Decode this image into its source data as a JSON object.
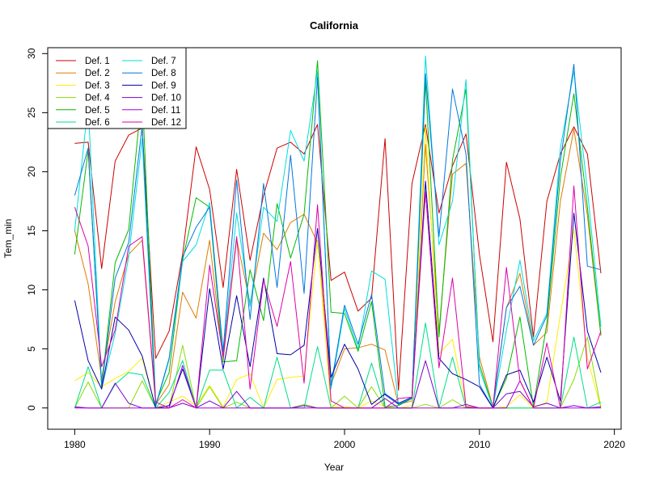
{
  "chart_data": {
    "type": "line",
    "title": "California",
    "xlabel": "Year",
    "ylabel": "Tem_min",
    "xlim": [
      1978,
      2020.5
    ],
    "ylim": [
      -1.8,
      30.5
    ],
    "x_ticks": [
      1980,
      1990,
      2000,
      2010,
      2020
    ],
    "y_ticks": [
      0,
      5,
      10,
      15,
      20,
      25,
      30
    ],
    "legend_position": "top-left",
    "grid": false,
    "x": [
      1980,
      1981,
      1982,
      1983,
      1984,
      1985,
      1986,
      1987,
      1988,
      1989,
      1990,
      1991,
      1992,
      1993,
      1994,
      1995,
      1996,
      1997,
      1998,
      1999,
      2000,
      2001,
      2002,
      2003,
      2004,
      2005,
      2006,
      2007,
      2008,
      2009,
      2010,
      2011,
      2012,
      2013,
      2014,
      2015,
      2016,
      2017,
      2018,
      2019
    ],
    "series": [
      {
        "name": "Def. 1",
        "color": "#cc0000",
        "values": [
          22.4,
          22.5,
          11.8,
          20.9,
          23.1,
          23.7,
          4.2,
          6.5,
          13.0,
          22.1,
          18.5,
          10.2,
          20.2,
          12.5,
          18.0,
          22.0,
          22.5,
          21.5,
          24.0,
          10.8,
          11.5,
          8.2,
          9.3,
          22.8,
          1.5,
          19.0,
          24.0,
          16.5,
          20.5,
          23.2,
          13.0,
          5.6,
          20.8,
          16.0,
          6.0,
          17.5,
          21.5,
          23.8,
          21.5,
          11.4
        ]
      },
      {
        "name": "Def. 2",
        "color": "#e07b00",
        "values": [
          15.0,
          10.5,
          2.5,
          9.0,
          13.0,
          14.2,
          0.3,
          2.0,
          9.8,
          7.6,
          14.2,
          4.0,
          14.3,
          8.9,
          14.8,
          13.4,
          15.7,
          16.4,
          14.0,
          2.0,
          5.0,
          5.1,
          5.4,
          4.9,
          0.3,
          0.6,
          22.3,
          6.5,
          19.8,
          20.7,
          4.3,
          0.1,
          8.5,
          11.4,
          5.3,
          6.4,
          17.5,
          23.6,
          16.3,
          6.1
        ]
      },
      {
        "name": "Def. 3",
        "color": "#ffee00",
        "values": [
          2.3,
          3.0,
          1.8,
          2.5,
          3.1,
          4.2,
          0.0,
          0.5,
          1.0,
          0.2,
          1.9,
          0.1,
          2.4,
          2.9,
          0.0,
          2.4,
          2.6,
          2.7,
          14.2,
          0.1,
          0.1,
          0.0,
          0.6,
          0.1,
          0.0,
          0.2,
          23.8,
          4.6,
          5.8,
          0.2,
          0.0,
          0.0,
          0.1,
          1.1,
          0.0,
          0.5,
          7.9,
          15.1,
          4.2,
          0.0
        ]
      },
      {
        "name": "Def. 4",
        "color": "#88dd00",
        "values": [
          0.0,
          2.2,
          0.0,
          0.0,
          0.0,
          2.3,
          0.0,
          0.0,
          5.3,
          0.0,
          1.8,
          0.0,
          0.5,
          0.0,
          0.0,
          0.0,
          0.0,
          0.3,
          0.0,
          0.0,
          1.0,
          0.0,
          1.8,
          0.0,
          0.0,
          0.0,
          0.3,
          0.0,
          0.7,
          0.0,
          0.0,
          0.0,
          0.0,
          0.0,
          0.0,
          0.0,
          0.0,
          2.4,
          6.0,
          0.0
        ]
      },
      {
        "name": "Def. 5",
        "color": "#00bb00",
        "values": [
          13.0,
          21.8,
          1.9,
          12.3,
          15.1,
          26.9,
          0.4,
          3.0,
          12.5,
          17.8,
          17.0,
          3.9,
          4.0,
          11.7,
          7.4,
          17.3,
          12.7,
          16.4,
          29.4,
          8.1,
          8.0,
          4.8,
          9.0,
          0.1,
          0.2,
          0.8,
          27.7,
          6.0,
          21.0,
          27.0,
          3.7,
          0.0,
          2.5,
          7.7,
          0.1,
          7.2,
          19.5,
          26.6,
          17.0,
          6.2
        ]
      },
      {
        "name": "Def. 6",
        "color": "#00dd88",
        "values": [
          0.0,
          3.5,
          0.0,
          2.0,
          3.0,
          2.8,
          0.0,
          1.3,
          4.0,
          0.0,
          3.2,
          3.2,
          0.0,
          0.9,
          0.0,
          4.3,
          0.0,
          0.0,
          5.2,
          0.0,
          0.0,
          0.0,
          3.8,
          0.0,
          0.0,
          0.0,
          7.2,
          0.0,
          4.3,
          0.0,
          0.0,
          0.0,
          0.0,
          0.0,
          0.0,
          0.0,
          0.0,
          6.0,
          0.0,
          0.5
        ]
      },
      {
        "name": "Def. 7",
        "color": "#00dddd",
        "values": [
          15.0,
          25.8,
          1.7,
          6.3,
          12.8,
          22.8,
          0.1,
          4.1,
          12.4,
          13.8,
          17.4,
          4.4,
          16.5,
          8.6,
          17.0,
          15.8,
          23.5,
          20.9,
          28.5,
          1.6,
          8.4,
          5.0,
          11.6,
          10.9,
          0.3,
          0.8,
          29.8,
          13.8,
          17.5,
          27.8,
          3.3,
          0.0,
          6.6,
          12.5,
          5.7,
          8.0,
          22.0,
          28.5,
          18.5,
          6.9
        ]
      },
      {
        "name": "Def. 8",
        "color": "#0077dd",
        "values": [
          18.0,
          22.0,
          1.8,
          11.0,
          14.0,
          23.9,
          0.2,
          4.2,
          12.8,
          15.3,
          17.0,
          4.8,
          19.3,
          7.5,
          19.0,
          10.2,
          21.4,
          9.7,
          28.0,
          1.9,
          8.7,
          5.4,
          9.6,
          1.1,
          0.3,
          0.8,
          28.3,
          14.5,
          27.0,
          21.5,
          2.0,
          0.0,
          8.5,
          10.3,
          5.3,
          7.8,
          20.9,
          29.1,
          12.0,
          11.7
        ]
      },
      {
        "name": "Def. 9",
        "color": "#0000aa",
        "values": [
          9.1,
          4.0,
          1.6,
          7.7,
          6.6,
          4.4,
          0.0,
          0.2,
          3.3,
          0.0,
          10.1,
          3.3,
          9.5,
          3.5,
          11.0,
          4.6,
          4.5,
          5.3,
          15.2,
          2.6,
          5.4,
          3.3,
          0.3,
          1.2,
          0.4,
          0.9,
          19.2,
          4.2,
          2.9,
          2.4,
          1.8,
          0.0,
          2.8,
          3.2,
          0.5,
          4.3,
          0.6,
          16.5,
          6.5,
          3.0
        ]
      },
      {
        "name": "Def. 10",
        "color": "#7700cc",
        "values": [
          0.1,
          0.0,
          0.0,
          2.1,
          0.4,
          0.0,
          0.0,
          0.0,
          0.4,
          0.0,
          0.6,
          0.0,
          1.4,
          0.0,
          0.0,
          0.0,
          0.0,
          0.2,
          0.0,
          0.0,
          0.0,
          0.0,
          0.0,
          0.8,
          0.0,
          0.0,
          4.0,
          0.0,
          0.0,
          0.3,
          0.0,
          0.0,
          1.2,
          1.4,
          0.1,
          0.4,
          0.0,
          0.2,
          0.0,
          0.1
        ]
      },
      {
        "name": "Def. 11",
        "color": "#aa00dd",
        "values": [
          0.0,
          0.0,
          0.0,
          0.0,
          0.0,
          0.0,
          0.0,
          0.0,
          3.6,
          0.0,
          0.0,
          0.0,
          0.0,
          0.0,
          0.0,
          0.0,
          0.0,
          0.0,
          0.0,
          0.0,
          0.0,
          0.0,
          0.0,
          0.0,
          0.0,
          0.0,
          0.0,
          0.0,
          0.0,
          0.0,
          0.0,
          0.0,
          0.0,
          2.3,
          0.0,
          0.0,
          0.0,
          0.0,
          0.0,
          0.0
        ]
      },
      {
        "name": "Def. 12",
        "color": "#dd00aa",
        "values": [
          17.0,
          13.7,
          3.5,
          6.6,
          13.7,
          14.5,
          0.5,
          0.0,
          0.7,
          0.0,
          12.1,
          4.3,
          14.5,
          1.6,
          10.8,
          6.9,
          12.4,
          2.1,
          17.2,
          0.6,
          0.0,
          0.0,
          0.0,
          0.0,
          0.8,
          0.9,
          18.3,
          3.4,
          11.0,
          0.1,
          0.0,
          0.0,
          11.9,
          2.3,
          0.0,
          5.5,
          0.0,
          18.8,
          3.3,
          6.5
        ]
      }
    ]
  }
}
